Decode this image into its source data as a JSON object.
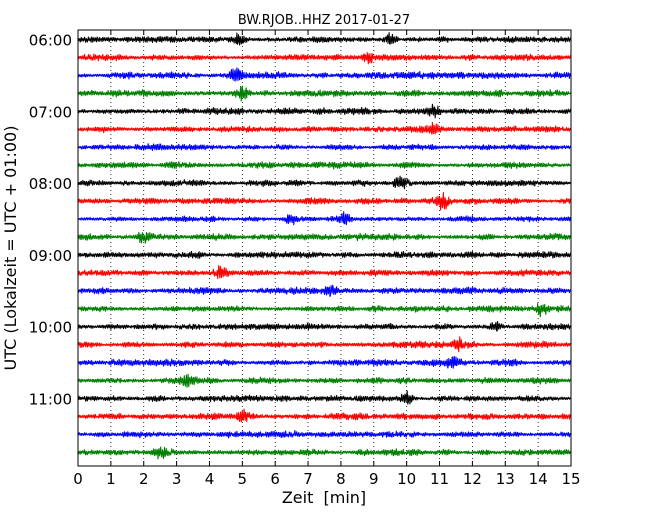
{
  "chart_data": {
    "type": "line",
    "title": "BW.RJOB..HHZ 2017-01-27",
    "xlabel": "Zeit  [min]",
    "ylabel": "UTC (Lokalzeit = UTC + 01:00)",
    "xlim": [
      0,
      15
    ],
    "x_ticks": [
      "0",
      "1",
      "2",
      "3",
      "4",
      "5",
      "6",
      "7",
      "8",
      "9",
      "10",
      "11",
      "12",
      "13",
      "14",
      "15"
    ],
    "row_labels": [
      {
        "row": 0,
        "label": "06:00"
      },
      {
        "row": 4,
        "label": "07:00"
      },
      {
        "row": 8,
        "label": "08:00"
      },
      {
        "row": 12,
        "label": "09:00"
      },
      {
        "row": 16,
        "label": "10:00"
      },
      {
        "row": 20,
        "label": "11:00"
      }
    ],
    "row_count": 24,
    "row_minutes": 15,
    "colors": [
      "#000000",
      "#ff0000",
      "#0000ff",
      "#008000"
    ],
    "grid": true,
    "grid_style": "dotted vertical lines at each minute",
    "events": [
      {
        "row": 0,
        "minute": 9.5,
        "amplitude": 1.6
      },
      {
        "row": 0,
        "minute": 4.9,
        "amplitude": 1.4
      },
      {
        "row": 1,
        "minute": 8.8,
        "amplitude": 1.5
      },
      {
        "row": 2,
        "minute": 4.8,
        "amplitude": 1.6
      },
      {
        "row": 3,
        "minute": 5.0,
        "amplitude": 1.9
      },
      {
        "row": 4,
        "minute": 10.8,
        "amplitude": 1.5
      },
      {
        "row": 5,
        "minute": 10.8,
        "amplitude": 1.4
      },
      {
        "row": 8,
        "minute": 9.8,
        "amplitude": 1.4
      },
      {
        "row": 9,
        "minute": 11.1,
        "amplitude": 2.0
      },
      {
        "row": 10,
        "minute": 8.1,
        "amplitude": 1.6
      },
      {
        "row": 10,
        "minute": 6.5,
        "amplitude": 1.4
      },
      {
        "row": 11,
        "minute": 2.0,
        "amplitude": 1.4
      },
      {
        "row": 13,
        "minute": 4.3,
        "amplitude": 1.4
      },
      {
        "row": 14,
        "minute": 7.7,
        "amplitude": 1.5
      },
      {
        "row": 15,
        "minute": 14.1,
        "amplitude": 1.5
      },
      {
        "row": 16,
        "minute": 12.7,
        "amplitude": 1.3
      },
      {
        "row": 17,
        "minute": 11.6,
        "amplitude": 1.4
      },
      {
        "row": 18,
        "minute": 11.4,
        "amplitude": 1.4
      },
      {
        "row": 19,
        "minute": 3.3,
        "amplitude": 1.3
      },
      {
        "row": 20,
        "minute": 10.0,
        "amplitude": 1.7
      },
      {
        "row": 21,
        "minute": 5.0,
        "amplitude": 1.5
      },
      {
        "row": 23,
        "minute": 2.5,
        "amplitude": 1.3
      }
    ]
  }
}
